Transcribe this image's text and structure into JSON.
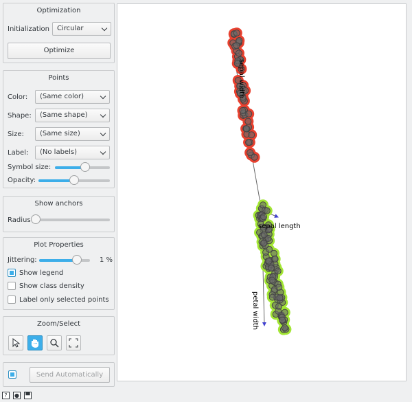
{
  "optimization": {
    "title": "Optimization",
    "init_label": "Initialization",
    "init_value": "Circular",
    "optimize_label": "Optimize"
  },
  "points": {
    "title": "Points",
    "color_label": "Color:",
    "color_value": "(Same color)",
    "shape_label": "Shape:",
    "shape_value": "(Same shape)",
    "size_label": "Size:",
    "size_value": "(Same size)",
    "label_label": "Label:",
    "label_value": "(No labels)",
    "symbol_size_label": "Symbol size:",
    "symbol_size_level": 0.55,
    "opacity_label": "Opacity:",
    "opacity_level": 0.5
  },
  "anchors": {
    "title": "Show anchors",
    "radius_label": "Radius",
    "radius_level": 0
  },
  "plot_props": {
    "title": "Plot Properties",
    "jitter_label": "Jittering:",
    "jitter_value": "1 %",
    "show_legend": "Show legend",
    "show_legend_checked": true,
    "class_density": "Show class density",
    "class_density_checked": false,
    "label_selected": "Label only selected points",
    "label_selected_checked": false
  },
  "zoom": {
    "title": "Zoom/Select",
    "tools": [
      "pointer-icon",
      "hand-icon",
      "magnifier-icon",
      "fullscreen-icon"
    ],
    "active": "hand-icon"
  },
  "send": {
    "auto_checked": true,
    "label": "Send Automatically"
  },
  "plot": {
    "anchor_labels": [
      "sepal width",
      "sepal length",
      "petal width"
    ],
    "colors": {
      "selected_red": "#e8412f",
      "selected_green": "#a3e635",
      "point": "#6b6b6b",
      "anchor": "#4040d0"
    }
  }
}
